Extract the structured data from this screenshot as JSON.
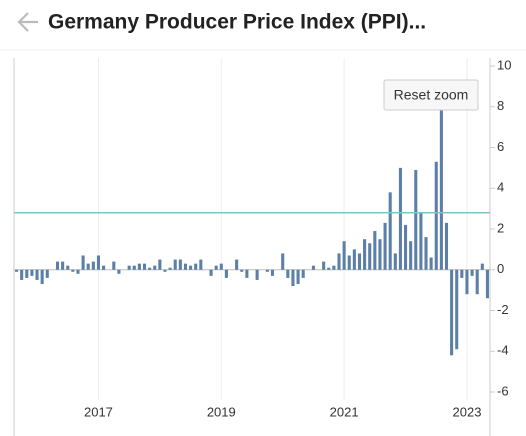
{
  "chart_data": {
    "type": "bar",
    "title": "Germany Producer Price Index (PPI)...",
    "button": "Reset zoom",
    "categories": [
      null,
      null,
      null,
      null,
      null,
      null,
      null,
      null,
      null,
      null,
      null,
      null,
      null,
      null,
      null,
      null,
      "2017",
      null,
      null,
      null,
      null,
      null,
      null,
      null,
      null,
      null,
      null,
      null,
      null,
      null,
      null,
      null,
      null,
      null,
      null,
      null,
      null,
      null,
      null,
      null,
      "2019",
      null,
      null,
      null,
      null,
      null,
      null,
      null,
      null,
      null,
      null,
      null,
      null,
      null,
      null,
      null,
      null,
      null,
      null,
      null,
      null,
      null,
      null,
      null,
      "2021",
      null,
      null,
      null,
      null,
      null,
      null,
      null,
      null,
      null,
      null,
      null,
      null,
      null,
      null,
      null,
      null,
      null,
      null,
      null,
      null,
      null,
      null,
      null,
      "2023",
      null,
      null,
      null,
      null
    ],
    "values": [
      -0.1,
      -0.5,
      -0.4,
      -0.3,
      -0.5,
      -0.7,
      -0.4,
      0.0,
      0.4,
      0.4,
      0.2,
      -0.1,
      -0.2,
      0.7,
      0.3,
      0.4,
      0.7,
      0.2,
      0.0,
      0.4,
      -0.2,
      0.0,
      0.2,
      0.2,
      0.3,
      0.3,
      0.1,
      0.2,
      0.5,
      -0.1,
      0.1,
      0.5,
      0.5,
      0.3,
      0.2,
      0.3,
      0.5,
      0.0,
      -0.3,
      0.2,
      0.3,
      -0.4,
      0.0,
      0.5,
      -0.1,
      -0.4,
      0.0,
      -0.5,
      0.0,
      -0.1,
      -0.3,
      0.0,
      0.8,
      -0.4,
      -0.8,
      -0.7,
      -0.4,
      0.0,
      0.2,
      0.0,
      0.4,
      0.1,
      0.2,
      0.8,
      1.4,
      0.7,
      1.0,
      0.8,
      1.5,
      1.3,
      1.9,
      1.5,
      2.3,
      3.8,
      0.8,
      5.0,
      2.2,
      1.4,
      4.9,
      2.8,
      1.6,
      0.6,
      5.3,
      7.9,
      2.3,
      -4.2,
      -3.9,
      -0.4,
      -1.2,
      -0.3,
      -1.2,
      0.3,
      -1.4
    ],
    "color": "#5b7fa6",
    "reference_line": 2.8,
    "reference_color": "#7fc4c4",
    "ylim": [
      -6,
      10
    ],
    "yticks": [
      10,
      8,
      6,
      4,
      2,
      0,
      -2,
      -4,
      -6
    ],
    "x_grid": true
  }
}
